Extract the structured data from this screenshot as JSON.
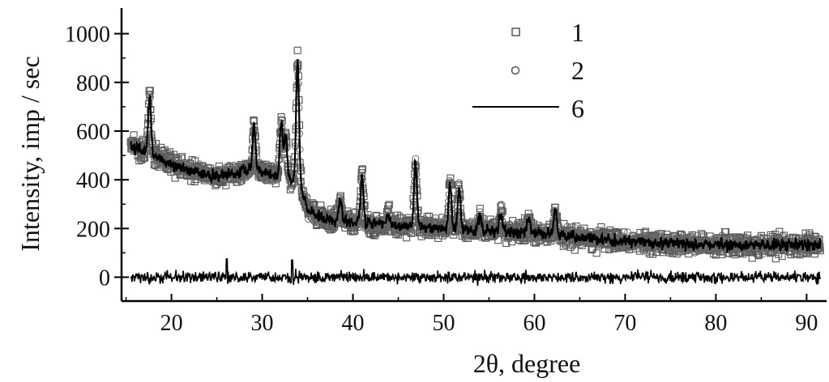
{
  "chart_data": {
    "type": "scatter",
    "title": "",
    "xlabel": "2θ, degree",
    "ylabel": "Intensity, imp / sec",
    "xlim": [
      14,
      92
    ],
    "ylim": [
      -100,
      1100
    ],
    "xticks": [
      20,
      30,
      40,
      50,
      60,
      70,
      80,
      90
    ],
    "yticks": [
      0,
      200,
      400,
      600,
      800,
      1000
    ],
    "grid": false,
    "legend_position": "top-right",
    "x_start": 15.5,
    "x_end": 91.5,
    "background_anchors": [
      [
        15.5,
        540
      ],
      [
        18,
        500
      ],
      [
        21,
        450
      ],
      [
        24,
        415
      ],
      [
        27,
        425
      ],
      [
        29,
        445
      ],
      [
        31,
        420
      ],
      [
        33,
        395
      ],
      [
        34.2,
        375
      ],
      [
        35,
        275
      ],
      [
        37,
        240
      ],
      [
        40,
        225
      ],
      [
        45,
        210
      ],
      [
        50,
        200
      ],
      [
        55,
        190
      ],
      [
        60,
        182
      ],
      [
        65,
        165
      ],
      [
        70,
        148
      ],
      [
        75,
        138
      ],
      [
        80,
        133
      ],
      [
        85,
        132
      ],
      [
        90,
        133
      ],
      [
        91.5,
        133
      ]
    ],
    "peaks": [
      {
        "x": 17.6,
        "intensity": 740
      },
      {
        "x": 29.1,
        "intensity": 630
      },
      {
        "x": 32.1,
        "intensity": 640
      },
      {
        "x": 32.6,
        "intensity": 590
      },
      {
        "x": 33.9,
        "intensity": 890
      },
      {
        "x": 38.6,
        "intensity": 320
      },
      {
        "x": 41.0,
        "intensity": 420
      },
      {
        "x": 43.9,
        "intensity": 265
      },
      {
        "x": 46.9,
        "intensity": 475
      },
      {
        "x": 50.7,
        "intensity": 385
      },
      {
        "x": 51.7,
        "intensity": 360
      },
      {
        "x": 54.0,
        "intensity": 250
      },
      {
        "x": 56.3,
        "intensity": 265
      },
      {
        "x": 59.4,
        "intensity": 240
      },
      {
        "x": 62.3,
        "intensity": 280
      }
    ],
    "difference_curve": {
      "baseline": 0,
      "spikes": [
        [
          26.1,
          75
        ],
        [
          33.3,
          70
        ]
      ]
    },
    "series": [
      {
        "name": "1",
        "marker": "square",
        "color": "#555555"
      },
      {
        "name": "2",
        "marker": "circle",
        "color": "#555555"
      },
      {
        "name": "6",
        "marker": "line",
        "color": "#000000"
      }
    ]
  }
}
